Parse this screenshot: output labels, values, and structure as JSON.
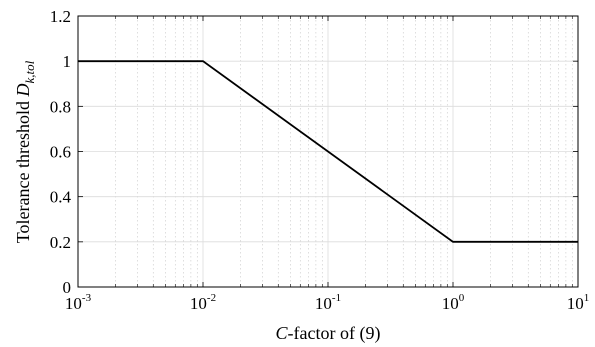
{
  "chart_data": {
    "type": "line",
    "title": "",
    "xlabel": {
      "italic": "C",
      "rest": "-factor of (9)"
    },
    "ylabel": {
      "main": "Tolerance threshold ",
      "symbol": "D",
      "subscript": "k,tol"
    },
    "xscale": "log",
    "xlim": [
      0.001,
      10
    ],
    "ylim": [
      0,
      1.2
    ],
    "grid": true,
    "minor_grid": true,
    "x_ticks": [
      {
        "base": "10",
        "exp": "-3"
      },
      {
        "base": "10",
        "exp": "-2"
      },
      {
        "base": "10",
        "exp": "-1"
      },
      {
        "base": "10",
        "exp": "0"
      },
      {
        "base": "10",
        "exp": "1"
      }
    ],
    "y_ticks": [
      "0",
      "0.2",
      "0.4",
      "0.6",
      "0.8",
      "1",
      "1.2"
    ],
    "series": [
      {
        "color": "#000000",
        "x": [
          0.001,
          0.01,
          1,
          10
        ],
        "y": [
          1.0,
          1.0,
          0.2,
          0.2
        ]
      }
    ]
  }
}
